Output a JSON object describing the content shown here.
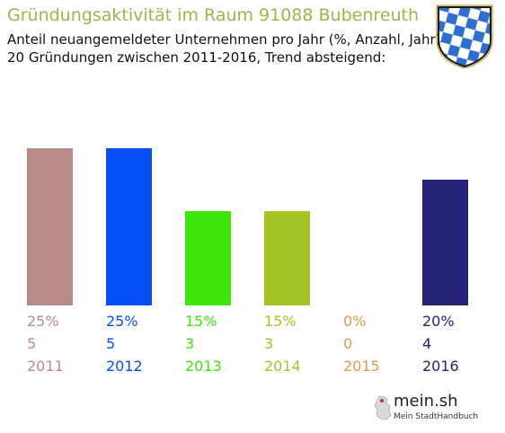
{
  "header": {
    "title": "Gründungsaktivität im Raum 91088 Bubenreuth",
    "subtitle_line1": "Anteil neuangemeldeter Unternehmen pro Jahr (%, Anzahl, Jahr)",
    "subtitle_line2": "20 Gründungen zwischen 2011-2016, Trend absteigend:"
  },
  "chart_data": {
    "type": "bar",
    "title": "Gründungsaktivität im Raum 91088 Bubenreuth",
    "categories": [
      "2011",
      "2012",
      "2013",
      "2014",
      "2015",
      "2016"
    ],
    "values": [
      25,
      25,
      15,
      15,
      0,
      20
    ],
    "percent_labels": [
      "25%",
      "25%",
      "15%",
      "15%",
      "0%",
      "20%"
    ],
    "count_labels": [
      "5",
      "5",
      "3",
      "3",
      "0",
      "4"
    ],
    "colors": [
      "#b98b88",
      "#0550f5",
      "#3ee60c",
      "#a3c424",
      "#e09a50",
      "#262278"
    ],
    "ylim": [
      0,
      25
    ],
    "grid": false,
    "legend": "none"
  },
  "logo": {
    "name": "mein.sh",
    "tagline": "Mein StadtHandbuch"
  },
  "icons": {
    "coat_of_arms": "bavaria-coat-of-arms-icon",
    "logo_mark": "germany-map-icon"
  }
}
